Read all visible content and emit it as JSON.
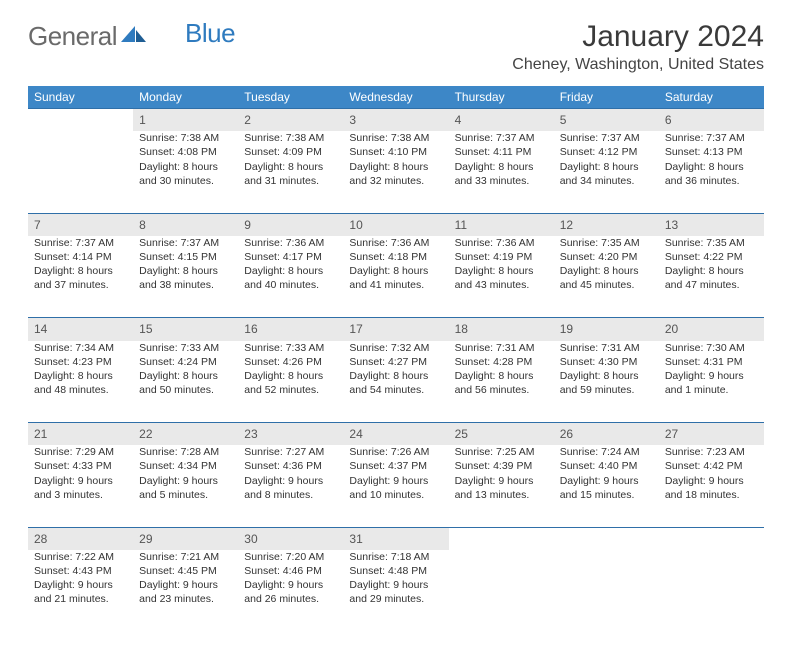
{
  "brand": {
    "part1": "General",
    "part2": "Blue"
  },
  "title": "January 2024",
  "location": "Cheney, Washington, United States",
  "colors": {
    "header_bg": "#3d87c7",
    "header_text": "#ffffff",
    "daynum_bg": "#e9e9e9",
    "rule": "#2f6fa8",
    "brand_gray": "#6a6a6a",
    "brand_blue": "#2f7bbf"
  },
  "day_headers": [
    "Sunday",
    "Monday",
    "Tuesday",
    "Wednesday",
    "Thursday",
    "Friday",
    "Saturday"
  ],
  "weeks": [
    [
      {
        "blank": true
      },
      {
        "num": "1",
        "sunrise": "Sunrise: 7:38 AM",
        "sunset": "Sunset: 4:08 PM",
        "day1": "Daylight: 8 hours",
        "day2": "and 30 minutes."
      },
      {
        "num": "2",
        "sunrise": "Sunrise: 7:38 AM",
        "sunset": "Sunset: 4:09 PM",
        "day1": "Daylight: 8 hours",
        "day2": "and 31 minutes."
      },
      {
        "num": "3",
        "sunrise": "Sunrise: 7:38 AM",
        "sunset": "Sunset: 4:10 PM",
        "day1": "Daylight: 8 hours",
        "day2": "and 32 minutes."
      },
      {
        "num": "4",
        "sunrise": "Sunrise: 7:37 AM",
        "sunset": "Sunset: 4:11 PM",
        "day1": "Daylight: 8 hours",
        "day2": "and 33 minutes."
      },
      {
        "num": "5",
        "sunrise": "Sunrise: 7:37 AM",
        "sunset": "Sunset: 4:12 PM",
        "day1": "Daylight: 8 hours",
        "day2": "and 34 minutes."
      },
      {
        "num": "6",
        "sunrise": "Sunrise: 7:37 AM",
        "sunset": "Sunset: 4:13 PM",
        "day1": "Daylight: 8 hours",
        "day2": "and 36 minutes."
      }
    ],
    [
      {
        "num": "7",
        "sunrise": "Sunrise: 7:37 AM",
        "sunset": "Sunset: 4:14 PM",
        "day1": "Daylight: 8 hours",
        "day2": "and 37 minutes."
      },
      {
        "num": "8",
        "sunrise": "Sunrise: 7:37 AM",
        "sunset": "Sunset: 4:15 PM",
        "day1": "Daylight: 8 hours",
        "day2": "and 38 minutes."
      },
      {
        "num": "9",
        "sunrise": "Sunrise: 7:36 AM",
        "sunset": "Sunset: 4:17 PM",
        "day1": "Daylight: 8 hours",
        "day2": "and 40 minutes."
      },
      {
        "num": "10",
        "sunrise": "Sunrise: 7:36 AM",
        "sunset": "Sunset: 4:18 PM",
        "day1": "Daylight: 8 hours",
        "day2": "and 41 minutes."
      },
      {
        "num": "11",
        "sunrise": "Sunrise: 7:36 AM",
        "sunset": "Sunset: 4:19 PM",
        "day1": "Daylight: 8 hours",
        "day2": "and 43 minutes."
      },
      {
        "num": "12",
        "sunrise": "Sunrise: 7:35 AM",
        "sunset": "Sunset: 4:20 PM",
        "day1": "Daylight: 8 hours",
        "day2": "and 45 minutes."
      },
      {
        "num": "13",
        "sunrise": "Sunrise: 7:35 AM",
        "sunset": "Sunset: 4:22 PM",
        "day1": "Daylight: 8 hours",
        "day2": "and 47 minutes."
      }
    ],
    [
      {
        "num": "14",
        "sunrise": "Sunrise: 7:34 AM",
        "sunset": "Sunset: 4:23 PM",
        "day1": "Daylight: 8 hours",
        "day2": "and 48 minutes."
      },
      {
        "num": "15",
        "sunrise": "Sunrise: 7:33 AM",
        "sunset": "Sunset: 4:24 PM",
        "day1": "Daylight: 8 hours",
        "day2": "and 50 minutes."
      },
      {
        "num": "16",
        "sunrise": "Sunrise: 7:33 AM",
        "sunset": "Sunset: 4:26 PM",
        "day1": "Daylight: 8 hours",
        "day2": "and 52 minutes."
      },
      {
        "num": "17",
        "sunrise": "Sunrise: 7:32 AM",
        "sunset": "Sunset: 4:27 PM",
        "day1": "Daylight: 8 hours",
        "day2": "and 54 minutes."
      },
      {
        "num": "18",
        "sunrise": "Sunrise: 7:31 AM",
        "sunset": "Sunset: 4:28 PM",
        "day1": "Daylight: 8 hours",
        "day2": "and 56 minutes."
      },
      {
        "num": "19",
        "sunrise": "Sunrise: 7:31 AM",
        "sunset": "Sunset: 4:30 PM",
        "day1": "Daylight: 8 hours",
        "day2": "and 59 minutes."
      },
      {
        "num": "20",
        "sunrise": "Sunrise: 7:30 AM",
        "sunset": "Sunset: 4:31 PM",
        "day1": "Daylight: 9 hours",
        "day2": "and 1 minute."
      }
    ],
    [
      {
        "num": "21",
        "sunrise": "Sunrise: 7:29 AM",
        "sunset": "Sunset: 4:33 PM",
        "day1": "Daylight: 9 hours",
        "day2": "and 3 minutes."
      },
      {
        "num": "22",
        "sunrise": "Sunrise: 7:28 AM",
        "sunset": "Sunset: 4:34 PM",
        "day1": "Daylight: 9 hours",
        "day2": "and 5 minutes."
      },
      {
        "num": "23",
        "sunrise": "Sunrise: 7:27 AM",
        "sunset": "Sunset: 4:36 PM",
        "day1": "Daylight: 9 hours",
        "day2": "and 8 minutes."
      },
      {
        "num": "24",
        "sunrise": "Sunrise: 7:26 AM",
        "sunset": "Sunset: 4:37 PM",
        "day1": "Daylight: 9 hours",
        "day2": "and 10 minutes."
      },
      {
        "num": "25",
        "sunrise": "Sunrise: 7:25 AM",
        "sunset": "Sunset: 4:39 PM",
        "day1": "Daylight: 9 hours",
        "day2": "and 13 minutes."
      },
      {
        "num": "26",
        "sunrise": "Sunrise: 7:24 AM",
        "sunset": "Sunset: 4:40 PM",
        "day1": "Daylight: 9 hours",
        "day2": "and 15 minutes."
      },
      {
        "num": "27",
        "sunrise": "Sunrise: 7:23 AM",
        "sunset": "Sunset: 4:42 PM",
        "day1": "Daylight: 9 hours",
        "day2": "and 18 minutes."
      }
    ],
    [
      {
        "num": "28",
        "sunrise": "Sunrise: 7:22 AM",
        "sunset": "Sunset: 4:43 PM",
        "day1": "Daylight: 9 hours",
        "day2": "and 21 minutes."
      },
      {
        "num": "29",
        "sunrise": "Sunrise: 7:21 AM",
        "sunset": "Sunset: 4:45 PM",
        "day1": "Daylight: 9 hours",
        "day2": "and 23 minutes."
      },
      {
        "num": "30",
        "sunrise": "Sunrise: 7:20 AM",
        "sunset": "Sunset: 4:46 PM",
        "day1": "Daylight: 9 hours",
        "day2": "and 26 minutes."
      },
      {
        "num": "31",
        "sunrise": "Sunrise: 7:18 AM",
        "sunset": "Sunset: 4:48 PM",
        "day1": "Daylight: 9 hours",
        "day2": "and 29 minutes."
      },
      {
        "blank": true
      },
      {
        "blank": true
      },
      {
        "blank": true
      }
    ]
  ]
}
